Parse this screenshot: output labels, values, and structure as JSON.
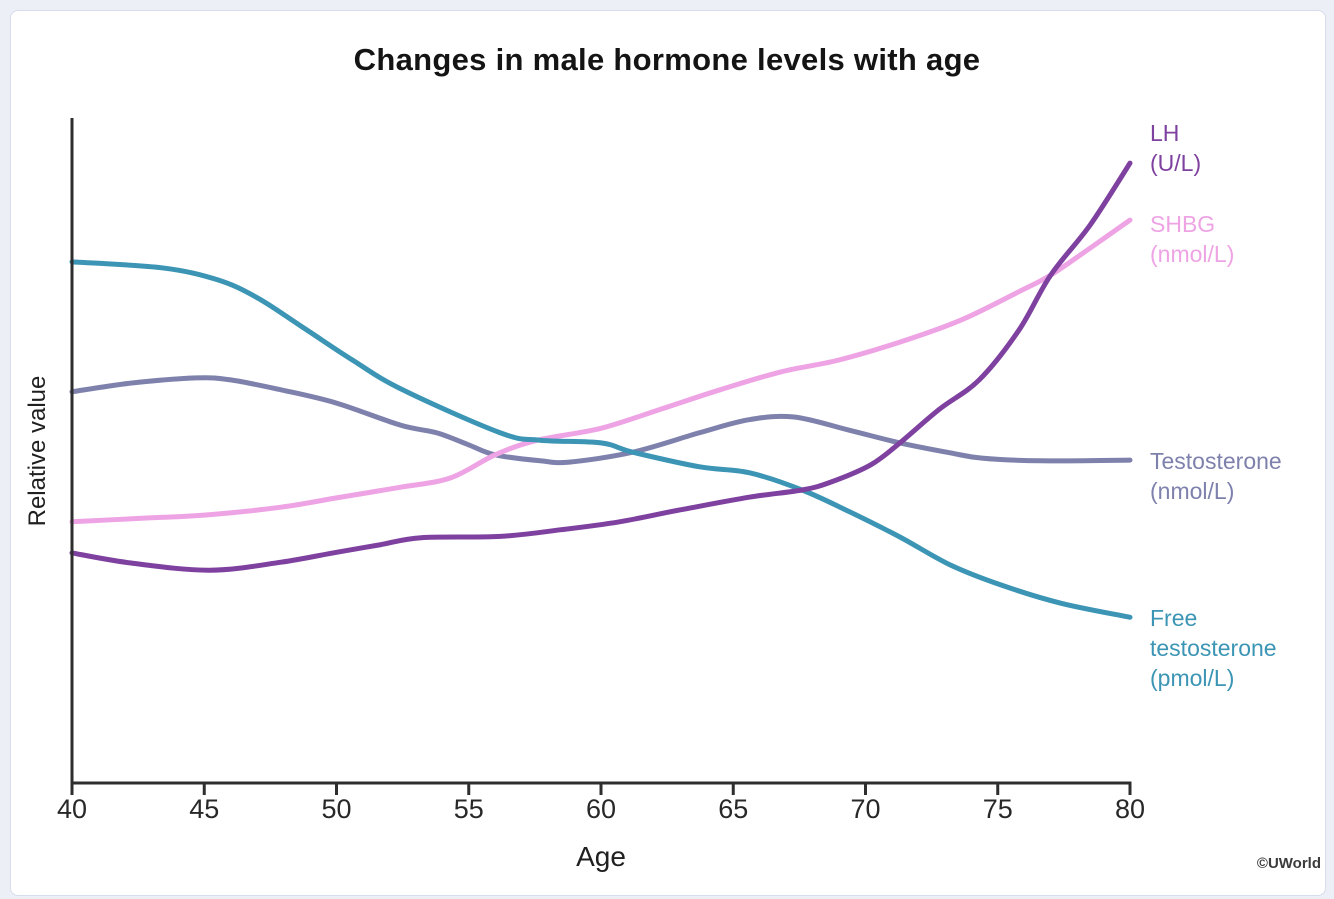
{
  "page": {
    "background": "#EDEFF7",
    "panel_background": "#FFFFFF",
    "panel_border": "#D8DCEC"
  },
  "watermark": "©UWorld",
  "chart_data": {
    "type": "line",
    "title": "Changes in male hormone levels with age",
    "xlabel": "Age",
    "ylabel": "Relative value",
    "xlim": [
      40,
      80
    ],
    "ylim": [
      0,
      100
    ],
    "x_ticks": [
      40,
      45,
      50,
      55,
      60,
      65,
      70,
      75,
      80
    ],
    "y_ticks": [],
    "grid": false,
    "axis_color": "#2E2E2E",
    "legend_position": "right-of-line-ends",
    "series": [
      {
        "name": "LH",
        "unit": "(U/L)",
        "label_lines": [
          "LH",
          "(U/L)"
        ],
        "color": "#7F419F",
        "points": [
          [
            40,
            34.7
          ],
          [
            42.2,
            33.2
          ],
          [
            45.2,
            32.1
          ],
          [
            47.9,
            33.3
          ],
          [
            50,
            34.8
          ],
          [
            51.6,
            35.9
          ],
          [
            53.2,
            37
          ],
          [
            56.2,
            37.2
          ],
          [
            58.5,
            38.2
          ],
          [
            60.7,
            39.4
          ],
          [
            63,
            41.2
          ],
          [
            65.6,
            43.1
          ],
          [
            67.6,
            44.2
          ],
          [
            68.7,
            45.4
          ],
          [
            70.2,
            48
          ],
          [
            71.3,
            51.3
          ],
          [
            72.8,
            56.4
          ],
          [
            74.3,
            60.8
          ],
          [
            75.8,
            68.3
          ],
          [
            77,
            76.6
          ],
          [
            78.5,
            84.2
          ],
          [
            80,
            93.5
          ]
        ]
      },
      {
        "name": "SHBG",
        "unit": "(nmol/L)",
        "label_lines": [
          "SHBG",
          "(nmol/L)"
        ],
        "color": "#EEA4E4",
        "points": [
          [
            40,
            39.4
          ],
          [
            43,
            40
          ],
          [
            45,
            40.4
          ],
          [
            47.9,
            41.6
          ],
          [
            50,
            43
          ],
          [
            52.4,
            44.6
          ],
          [
            54.3,
            46
          ],
          [
            56,
            49.5
          ],
          [
            57.6,
            51.7
          ],
          [
            60,
            53.5
          ],
          [
            62.2,
            56.3
          ],
          [
            64.5,
            59.3
          ],
          [
            66.8,
            62
          ],
          [
            69,
            63.8
          ],
          [
            71.3,
            66.5
          ],
          [
            73.6,
            69.8
          ],
          [
            75.8,
            74.1
          ],
          [
            77,
            76.6
          ],
          [
            78.5,
            80.7
          ],
          [
            80,
            84.9
          ]
        ]
      },
      {
        "name": "Testosterone",
        "unit": "(nmol/L)",
        "label_lines": [
          "Testosterone",
          "(nmol/L)"
        ],
        "color": "#7E81AC",
        "points": [
          [
            40,
            59
          ],
          [
            42.2,
            60.3
          ],
          [
            44.7,
            61.1
          ],
          [
            46,
            60.8
          ],
          [
            47.9,
            59.3
          ],
          [
            50,
            57.3
          ],
          [
            52.4,
            54
          ],
          [
            53.8,
            52.8
          ],
          [
            55,
            51
          ],
          [
            56,
            49.5
          ],
          [
            57.7,
            48.6
          ],
          [
            58.8,
            48.4
          ],
          [
            61.2,
            49.9
          ],
          [
            63.7,
            52.8
          ],
          [
            65.6,
            54.8
          ],
          [
            67.3,
            55.2
          ],
          [
            69.4,
            53.2
          ],
          [
            71.3,
            51.3
          ],
          [
            73.2,
            49.8
          ],
          [
            74.4,
            49
          ],
          [
            76.6,
            48.6
          ],
          [
            80,
            48.7
          ]
        ]
      },
      {
        "name": "Free testosterone",
        "unit": "(pmol/L)",
        "label_lines": [
          "Free",
          "testosterone",
          "(pmol/L)"
        ],
        "color": "#3C95B4",
        "points": [
          [
            40,
            78.6
          ],
          [
            43.4,
            77.7
          ],
          [
            45.5,
            75.9
          ],
          [
            47,
            73.2
          ],
          [
            48.7,
            68.8
          ],
          [
            50.6,
            63.8
          ],
          [
            52.5,
            59.3
          ],
          [
            56.2,
            52.8
          ],
          [
            57.7,
            51.7
          ],
          [
            60,
            51.3
          ],
          [
            61.2,
            49.9
          ],
          [
            63.7,
            47.7
          ],
          [
            65.6,
            46.8
          ],
          [
            67.6,
            44.2
          ],
          [
            69.4,
            40.9
          ],
          [
            71.3,
            37.1
          ],
          [
            73.2,
            32.9
          ],
          [
            75.1,
            29.9
          ],
          [
            77.4,
            27.1
          ],
          [
            80,
            25
          ]
        ]
      }
    ]
  }
}
